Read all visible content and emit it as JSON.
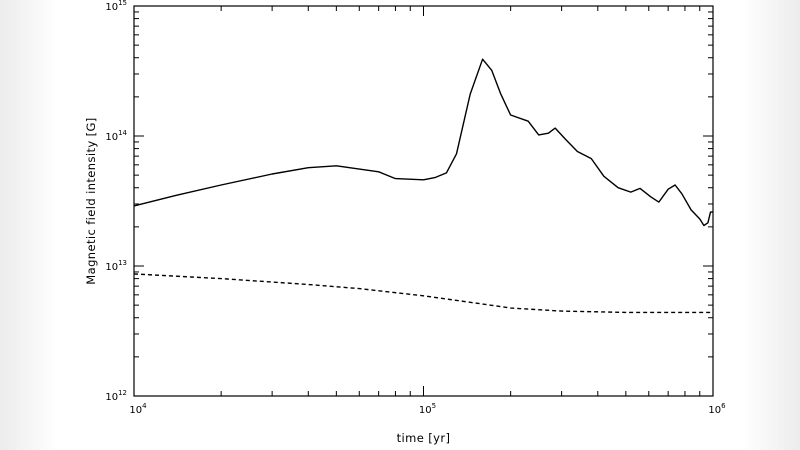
{
  "chart_data": {
    "type": "line",
    "title": "",
    "xlabel": "time [yr]",
    "ylabel": "Magnetic field intensity [G]",
    "xscale": "log",
    "yscale": "log",
    "xlim": [
      10000,
      1000000
    ],
    "ylim": [
      1000000000000.0,
      1000000000000000.0
    ],
    "grid": false,
    "x_ticks": [
      {
        "value": 10000,
        "base": "10",
        "exp": "4"
      },
      {
        "value": 100000,
        "base": "10",
        "exp": "5"
      },
      {
        "value": 1000000,
        "base": "10",
        "exp": "6"
      }
    ],
    "y_ticks": [
      {
        "value": 1000000000000.0,
        "base": "10",
        "exp": "12"
      },
      {
        "value": 10000000000000.0,
        "base": "10",
        "exp": "13"
      },
      {
        "value": 100000000000000.0,
        "base": "10",
        "exp": "14"
      },
      {
        "value": 1000000000000000.0,
        "base": "10",
        "exp": "15"
      }
    ],
    "series": [
      {
        "style": "solid",
        "color": "#000000",
        "points": [
          [
            10000,
            29000000000000.0
          ],
          [
            14000,
            35000000000000.0
          ],
          [
            20000,
            42000000000000.0
          ],
          [
            30000,
            51000000000000.0
          ],
          [
            40000,
            57000000000000.0
          ],
          [
            50000,
            59000000000000.0
          ],
          [
            70000,
            53000000000000.0
          ],
          [
            80000,
            47000000000000.0
          ],
          [
            100000,
            46000000000000.0
          ],
          [
            110000,
            48000000000000.0
          ],
          [
            120000,
            52000000000000.0
          ],
          [
            130000,
            73000000000000.0
          ],
          [
            145000,
            210000000000000.0
          ],
          [
            160000,
            390000000000000.0
          ],
          [
            172000,
            320000000000000.0
          ],
          [
            185000,
            210000000000000.0
          ],
          [
            200000,
            145000000000000.0
          ],
          [
            230000,
            130000000000000.0
          ],
          [
            250000,
            102000000000000.0
          ],
          [
            270000,
            105000000000000.0
          ],
          [
            285000,
            115000000000000.0
          ],
          [
            310000,
            94000000000000.0
          ],
          [
            340000,
            76000000000000.0
          ],
          [
            380000,
            67000000000000.0
          ],
          [
            420000,
            49000000000000.0
          ],
          [
            470000,
            40000000000000.0
          ],
          [
            520000,
            37000000000000.0
          ],
          [
            560000,
            39500000000000.0
          ],
          [
            610000,
            34000000000000.0
          ],
          [
            650000,
            31000000000000.0
          ],
          [
            700000,
            39000000000000.0
          ],
          [
            740000,
            42000000000000.0
          ],
          [
            780000,
            36000000000000.0
          ],
          [
            840000,
            27000000000000.0
          ],
          [
            900000,
            23000000000000.0
          ],
          [
            930000,
            20500000000000.0
          ],
          [
            960000,
            21500000000000.0
          ],
          [
            980000,
            26000000000000.0
          ],
          [
            1000000,
            26000000000000.0
          ]
        ]
      },
      {
        "style": "dashed",
        "color": "#000000",
        "points": [
          [
            10000,
            8700000000000.0
          ],
          [
            20000,
            8000000000000.0
          ],
          [
            40000,
            7200000000000.0
          ],
          [
            60000,
            6700000000000.0
          ],
          [
            100000,
            5900000000000.0
          ],
          [
            150000,
            5200000000000.0
          ],
          [
            200000,
            4750000000000.0
          ],
          [
            300000,
            4500000000000.0
          ],
          [
            500000,
            4400000000000.0
          ],
          [
            1000000,
            4400000000000.0
          ]
        ]
      }
    ]
  }
}
